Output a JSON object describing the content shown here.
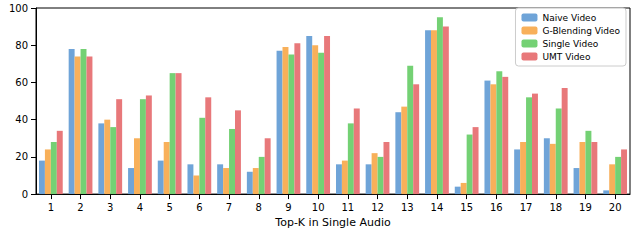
{
  "chart_data": {
    "type": "bar",
    "x_label": "Top-K in Single Audio",
    "categories": [
      "1",
      "2",
      "3",
      "4",
      "5",
      "6",
      "7",
      "8",
      "9",
      "10",
      "11",
      "12",
      "13",
      "14",
      "15",
      "16",
      "17",
      "18",
      "19",
      "20"
    ],
    "series": [
      {
        "name": "Naive Video",
        "color": "#6fa4d8",
        "values": [
          18,
          78,
          38,
          14,
          18,
          16,
          16,
          12,
          77,
          85,
          16,
          16,
          44,
          88,
          4,
          61,
          24,
          30,
          14,
          2
        ]
      },
      {
        "name": "G-Blending Video",
        "color": "#f8b05a",
        "values": [
          24,
          74,
          40,
          30,
          28,
          10,
          14,
          14,
          79,
          80,
          18,
          22,
          47,
          88,
          6,
          59,
          28,
          27,
          28,
          16
        ]
      },
      {
        "name": "Single Video",
        "color": "#74d174",
        "values": [
          28,
          78,
          36,
          51,
          65,
          41,
          35,
          20,
          75,
          76,
          38,
          20,
          69,
          95,
          32,
          66,
          52,
          46,
          34,
          20
        ]
      },
      {
        "name": "UMT Video",
        "color": "#e8787a",
        "values": [
          34,
          74,
          51,
          53,
          65,
          52,
          45,
          30,
          81,
          85,
          46,
          28,
          59,
          90,
          36,
          63,
          54,
          57,
          28,
          24
        ]
      }
    ],
    "ylim": [
      0,
      100
    ],
    "yticks": [
      0,
      20,
      40,
      60,
      80,
      100
    ],
    "grid": false,
    "legend": "upper right"
  }
}
